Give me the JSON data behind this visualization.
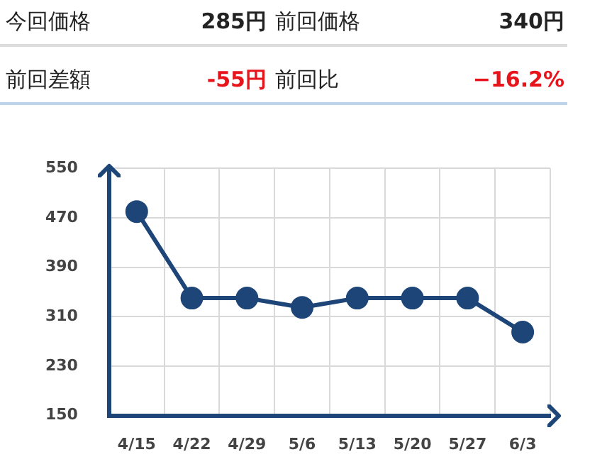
{
  "chart_data": {
    "type": "line",
    "annotations": [
      "今回価格",
      "285円",
      "前回価格",
      "340円",
      "前回差額",
      "-55円",
      "前回比",
      "−16.2%"
    ],
    "categories": [
      "4/15",
      "4/22",
      "4/29",
      "5/6",
      "5/13",
      "5/20",
      "5/27",
      "6/3"
    ],
    "series": [
      {
        "color": "#1d4577",
        "values": [
          480,
          340,
          340,
          325,
          340,
          340,
          340,
          285
        ]
      }
    ],
    "ylim": [
      150,
      550
    ],
    "yticks": [
      150,
      230,
      310,
      390,
      470,
      550
    ],
    "grid": true,
    "legend": false,
    "marker": "circle",
    "line_style": "solid"
  }
}
